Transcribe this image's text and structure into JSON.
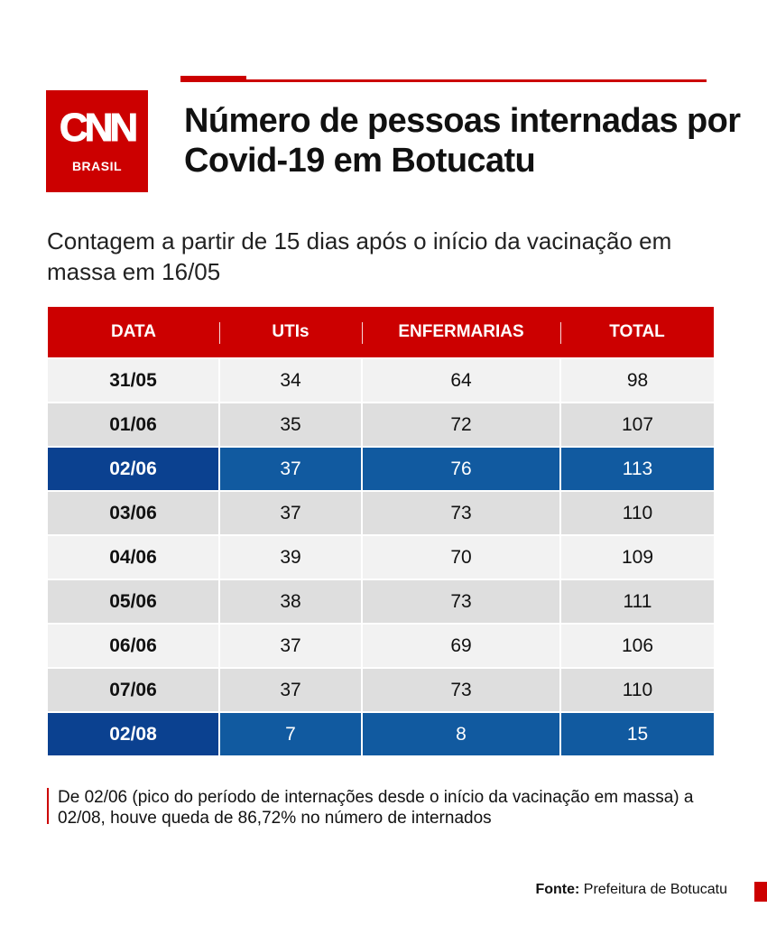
{
  "logo": {
    "wordmark": "CNN",
    "sub": "BRASIL"
  },
  "title": "Número de pessoas internadas por Covid-19 em Botucatu",
  "subtitle": "Contagem a partir de 15 dias após o início da vacinação em massa em 16/05",
  "colors": {
    "brand_red": "#cc0000",
    "highlight_blue": "#115aa0",
    "highlight_blue_dark": "#0b4190"
  },
  "chart_data": {
    "type": "table",
    "columns": [
      "DATA",
      "UTIs",
      "ENFERMARIAS",
      "TOTAL"
    ],
    "rows": [
      {
        "data": "31/05",
        "utis": "34",
        "enfermarias": "64",
        "total": "98",
        "highlight": false
      },
      {
        "data": "01/06",
        "utis": "35",
        "enfermarias": "72",
        "total": "107",
        "highlight": false
      },
      {
        "data": "02/06",
        "utis": "37",
        "enfermarias": "76",
        "total": "113",
        "highlight": true
      },
      {
        "data": "03/06",
        "utis": "37",
        "enfermarias": "73",
        "total": "110",
        "highlight": false
      },
      {
        "data": "04/06",
        "utis": "39",
        "enfermarias": "70",
        "total": "109",
        "highlight": false
      },
      {
        "data": "05/06",
        "utis": "38",
        "enfermarias": "73",
        "total": "111",
        "highlight": false
      },
      {
        "data": "06/06",
        "utis": "37",
        "enfermarias": "69",
        "total": "106",
        "highlight": false
      },
      {
        "data": "07/06",
        "utis": "37",
        "enfermarias": "73",
        "total": "110",
        "highlight": false
      },
      {
        "data": "02/08",
        "utis": "7",
        "enfermarias": "8",
        "total": "15",
        "highlight": true
      }
    ]
  },
  "note": "De 02/06 (pico do período de internações desde o início da vacinação em massa) a 02/08, houve queda de 86,72% no número de internados",
  "source": {
    "label": "Fonte:",
    "text": "Prefeitura de Botucatu"
  }
}
